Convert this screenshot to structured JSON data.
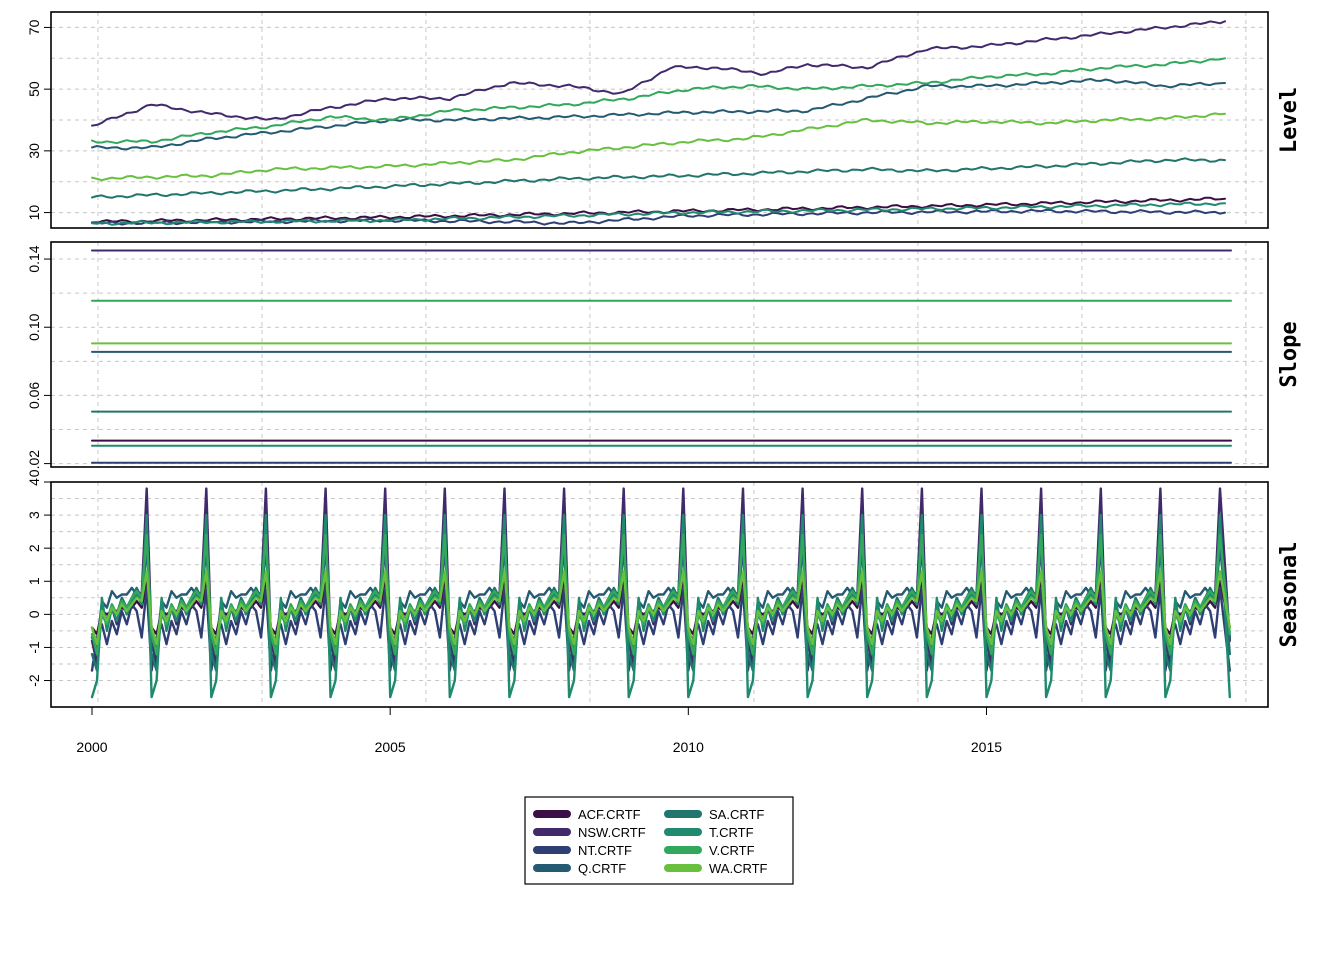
{
  "chart_data": {
    "type": "line",
    "x_axis": {
      "range": [
        2000,
        2019.1
      ],
      "ticks": [
        2000,
        2005,
        2010,
        2015
      ],
      "tick_labels": [
        "2000",
        "2005",
        "2010",
        "2015"
      ]
    },
    "grid": true,
    "legend": {
      "placement": "bottom-center",
      "columns": 2
    },
    "series_names": [
      "ACF.CRTF",
      "NSW.CRTF",
      "NT.CRTF",
      "Q.CRTF",
      "SA.CRTF",
      "T.CRTF",
      "V.CRTF",
      "WA.CRTF"
    ],
    "colors": [
      "#3b0f45",
      "#412a6c",
      "#2f3f74",
      "#245a72",
      "#21756c",
      "#1f8a6e",
      "#31a85c",
      "#67c13f"
    ],
    "panels": [
      {
        "label": "Level",
        "ylim": [
          5,
          75
        ],
        "yticks": [
          10,
          30,
          50,
          70
        ],
        "ytick_labels": [
          "10",
          "30",
          "50",
          "70"
        ],
        "series": [
          {
            "name": "ACF.CRTF",
            "points": [
              [
                2000,
                7
              ],
              [
                2005,
                8.5
              ],
              [
                2010,
                10.5
              ],
              [
                2015,
                12.5
              ],
              [
                2019,
                14.5
              ]
            ]
          },
          {
            "name": "NSW.CRTF",
            "points": [
              [
                2000,
                38
              ],
              [
                2001,
                45
              ],
              [
                2002,
                42
              ],
              [
                2003,
                40
              ],
              [
                2004,
                44
              ],
              [
                2005,
                47
              ],
              [
                2006,
                47
              ],
              [
                2007,
                52
              ],
              [
                2008,
                51
              ],
              [
                2008.9,
                48.5
              ],
              [
                2009.7,
                57
              ],
              [
                2010.4,
                57
              ],
              [
                2011.3,
                55
              ],
              [
                2012,
                58
              ],
              [
                2013,
                57
              ],
              [
                2014,
                63
              ],
              [
                2015,
                64
              ],
              [
                2016,
                66
              ],
              [
                2017,
                68
              ],
              [
                2018,
                70
              ],
              [
                2019,
                72
              ]
            ]
          },
          {
            "name": "NT.CRTF",
            "points": [
              [
                2000,
                6.5
              ],
              [
                2005,
                7.5
              ],
              [
                2007,
                7
              ],
              [
                2008,
                6.5
              ],
              [
                2010,
                9
              ],
              [
                2013,
                10
              ],
              [
                2016,
                10.5
              ],
              [
                2019,
                10
              ]
            ]
          },
          {
            "name": "Q.CRTF",
            "points": [
              [
                2000,
                31
              ],
              [
                2001,
                31
              ],
              [
                2002,
                34
              ],
              [
                2004,
                38
              ],
              [
                2005,
                40
              ],
              [
                2006,
                40
              ],
              [
                2008,
                41
              ],
              [
                2010,
                42.5
              ],
              [
                2012,
                43
              ],
              [
                2013,
                47
              ],
              [
                2014,
                51
              ],
              [
                2015,
                51
              ],
              [
                2016,
                52
              ],
              [
                2017,
                53
              ],
              [
                2018,
                51
              ],
              [
                2019,
                52
              ]
            ]
          },
          {
            "name": "SA.CRTF",
            "points": [
              [
                2000,
                15
              ],
              [
                2003,
                17
              ],
              [
                2005,
                18.5
              ],
              [
                2008,
                21
              ],
              [
                2010,
                22
              ],
              [
                2013,
                24
              ],
              [
                2014,
                23.5
              ],
              [
                2016,
                25
              ],
              [
                2018,
                27
              ],
              [
                2019,
                27
              ]
            ]
          },
          {
            "name": "T.CRTF",
            "points": [
              [
                2000,
                6.5
              ],
              [
                2005,
                7.5
              ],
              [
                2010,
                10
              ],
              [
                2015,
                11.5
              ],
              [
                2019,
                13
              ]
            ]
          },
          {
            "name": "V.CRTF",
            "points": [
              [
                2000,
                33
              ],
              [
                2001,
                33
              ],
              [
                2002,
                36
              ],
              [
                2003,
                38
              ],
              [
                2004,
                41
              ],
              [
                2005,
                40
              ],
              [
                2006,
                43
              ],
              [
                2007,
                44
              ],
              [
                2008,
                45
              ],
              [
                2009,
                47
              ],
              [
                2010,
                50
              ],
              [
                2011,
                51
              ],
              [
                2012,
                50
              ],
              [
                2013,
                51
              ],
              [
                2014,
                52
              ],
              [
                2015,
                54
              ],
              [
                2016,
                55
              ],
              [
                2017,
                57
              ],
              [
                2018,
                58
              ],
              [
                2019,
                60
              ]
            ]
          },
          {
            "name": "WA.CRTF",
            "points": [
              [
                2000,
                21
              ],
              [
                2002,
                22
              ],
              [
                2003,
                24
              ],
              [
                2005,
                25
              ],
              [
                2007,
                27
              ],
              [
                2008,
                29.5
              ],
              [
                2010,
                33
              ],
              [
                2011,
                34
              ],
              [
                2012,
                37
              ],
              [
                2013,
                40
              ],
              [
                2014,
                39
              ],
              [
                2015,
                39.5
              ],
              [
                2016,
                39
              ],
              [
                2017,
                40
              ],
              [
                2018,
                40.5
              ],
              [
                2019,
                42
              ]
            ]
          }
        ]
      },
      {
        "label": "Slope",
        "ylim": [
          0.018,
          0.15
        ],
        "yticks": [
          0.02,
          0.06,
          0.1,
          0.14
        ],
        "ytick_labels": [
          "0.02",
          "0.06",
          "0.10",
          "0.14"
        ],
        "series": [
          {
            "name": "ACF.CRTF",
            "value": 0.0335
          },
          {
            "name": "NSW.CRTF",
            "value": 0.145
          },
          {
            "name": "NT.CRTF",
            "value": 0.0205
          },
          {
            "name": "Q.CRTF",
            "value": 0.0855
          },
          {
            "name": "SA.CRTF",
            "value": 0.0505
          },
          {
            "name": "T.CRTF",
            "value": 0.0305
          },
          {
            "name": "V.CRTF",
            "value": 0.1155
          },
          {
            "name": "WA.CRTF",
            "value": 0.0905
          }
        ]
      },
      {
        "label": "Seasonal",
        "ylim": [
          -2.8,
          4
        ],
        "yticks": [
          -2,
          -1,
          0,
          1,
          2,
          3,
          4
        ],
        "ytick_labels": [
          "-2",
          "-1",
          "0",
          "1",
          "2",
          "3",
          "4"
        ],
        "cycle_years": [
          2000,
          2001,
          2002,
          2003,
          2004,
          2005,
          2006,
          2007,
          2008,
          2009,
          2010,
          2011,
          2012,
          2013,
          2014,
          2015,
          2016,
          2017,
          2018
        ],
        "end_x": 2019.08,
        "series": [
          {
            "name": "ACF.CRTF",
            "pattern": [
              -0.4,
              -0.6,
              0.1,
              0.0,
              0.1,
              0.1,
              0.2,
              0.1,
              0.2,
              0.4,
              0.2,
              1.0
            ]
          },
          {
            "name": "NSW.CRTF",
            "pattern": [
              -0.8,
              -1.5,
              0.2,
              -0.2,
              0.2,
              -0.3,
              0.4,
              0.2,
              0.5,
              0.7,
              0.6,
              3.8
            ]
          },
          {
            "name": "NT.CRTF",
            "pattern": [
              -1.7,
              -0.7,
              -0.3,
              -0.9,
              -0.2,
              -0.6,
              0.1,
              -0.3,
              0.3,
              0.1,
              -0.7,
              0.8
            ]
          },
          {
            "name": "Q.CRTF",
            "pattern": [
              -0.7,
              -1.0,
              0.4,
              0.2,
              0.7,
              0.5,
              0.6,
              0.6,
              0.8,
              0.6,
              0.4,
              2.0
            ]
          },
          {
            "name": "SA.CRTF",
            "pattern": [
              -1.2,
              -1.7,
              0.2,
              -0.2,
              0.3,
              0.0,
              0.5,
              0.2,
              0.5,
              0.8,
              0.5,
              2.5
            ]
          },
          {
            "name": "T.CRTF",
            "pattern": [
              -2.5,
              -2.0,
              0.5,
              -0.5,
              0.2,
              -0.2,
              0.4,
              0.0,
              0.4,
              0.6,
              0.3,
              3.0
            ]
          },
          {
            "name": "V.CRTF",
            "pattern": [
              -0.6,
              -1.2,
              0.0,
              -0.3,
              0.3,
              0.0,
              0.4,
              0.2,
              0.5,
              0.7,
              0.5,
              2.4
            ]
          },
          {
            "name": "WA.CRTF",
            "pattern": [
              -0.4,
              -0.9,
              0.1,
              -0.2,
              0.2,
              0.0,
              0.3,
              0.1,
              0.3,
              0.5,
              0.4,
              1.3
            ]
          }
        ]
      }
    ]
  }
}
